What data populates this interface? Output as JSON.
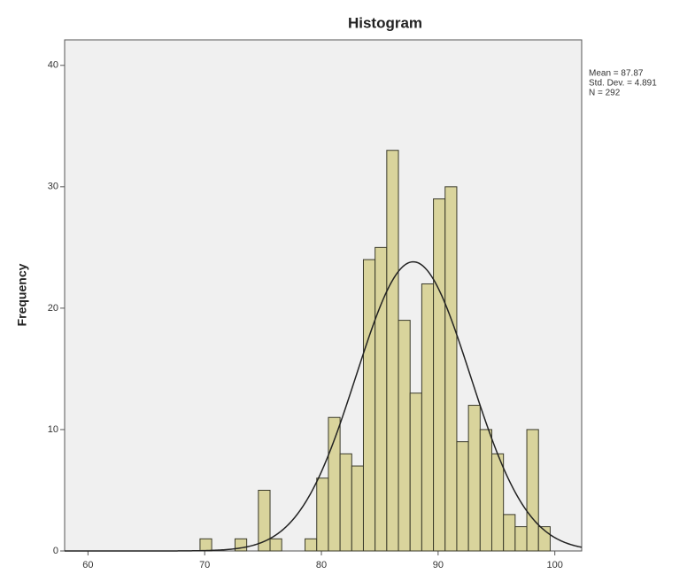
{
  "chart_data": {
    "type": "histogram",
    "title": "Histogram",
    "ylabel": "Frequency",
    "bins": [
      69.6,
      70.6,
      71.6,
      72.6,
      73.6,
      74.6,
      75.6,
      76.6,
      77.6,
      78.6,
      79.6,
      80.6,
      81.6,
      82.6,
      83.6,
      84.6,
      85.6,
      86.6,
      87.6,
      88.6,
      89.6,
      90.6,
      91.6,
      92.6,
      93.6,
      94.6,
      95.6,
      96.6,
      97.6,
      98.6,
      99.6
    ],
    "values": [
      1,
      0,
      0,
      1,
      0,
      5,
      1,
      0,
      0,
      1,
      6,
      11,
      8,
      7,
      24,
      25,
      33,
      19,
      13,
      22,
      29,
      30,
      9,
      12,
      10,
      8,
      3,
      2,
      10,
      2
    ],
    "color": "#d9d49c",
    "edgecolor": "#3a3a2a",
    "curve_color": "#222222",
    "stats": [
      {
        "value": 87.87,
        "label": "Mean = 87.87"
      },
      {
        "value": 4.891,
        "label": "Std. Dev. = 4.891"
      },
      {
        "value": 292,
        "label": "N = 292"
      }
    ],
    "xlim": [
      58,
      102.3
    ],
    "ylim": [
      0,
      42.1
    ],
    "xticks": [
      60,
      70,
      80,
      90,
      100
    ],
    "yticks": [
      0,
      10,
      20,
      30,
      40
    ],
    "grid": false
  }
}
